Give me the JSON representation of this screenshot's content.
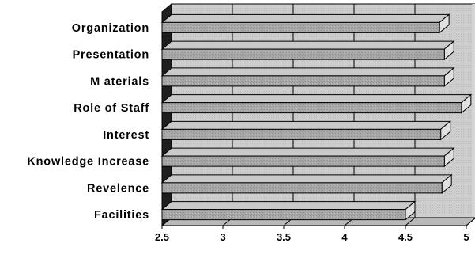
{
  "chart_data": {
    "type": "bar",
    "orientation": "horizontal",
    "three_d": true,
    "categories": [
      "Organization",
      "Presentation",
      "M aterials",
      "Role of Staff",
      "Interest",
      "Knowledge Increase",
      "Revelence",
      "Facilities"
    ],
    "values": [
      4.78,
      4.82,
      4.82,
      4.96,
      4.79,
      4.82,
      4.8,
      4.5
    ],
    "xlim": [
      2.5,
      5
    ],
    "xticks": [
      "2.5",
      "3",
      "3.5",
      "4",
      "4.5",
      "5"
    ],
    "grid": true,
    "legend": "none",
    "colors": {
      "bar_face": "#a4a4a4",
      "bar_top": "#c9c9c9",
      "bar_end": "#e0e0e0",
      "back_wall": "#cbcbcb",
      "left_wall": "#1e1e1e",
      "floor": "#b8b8b8"
    }
  }
}
